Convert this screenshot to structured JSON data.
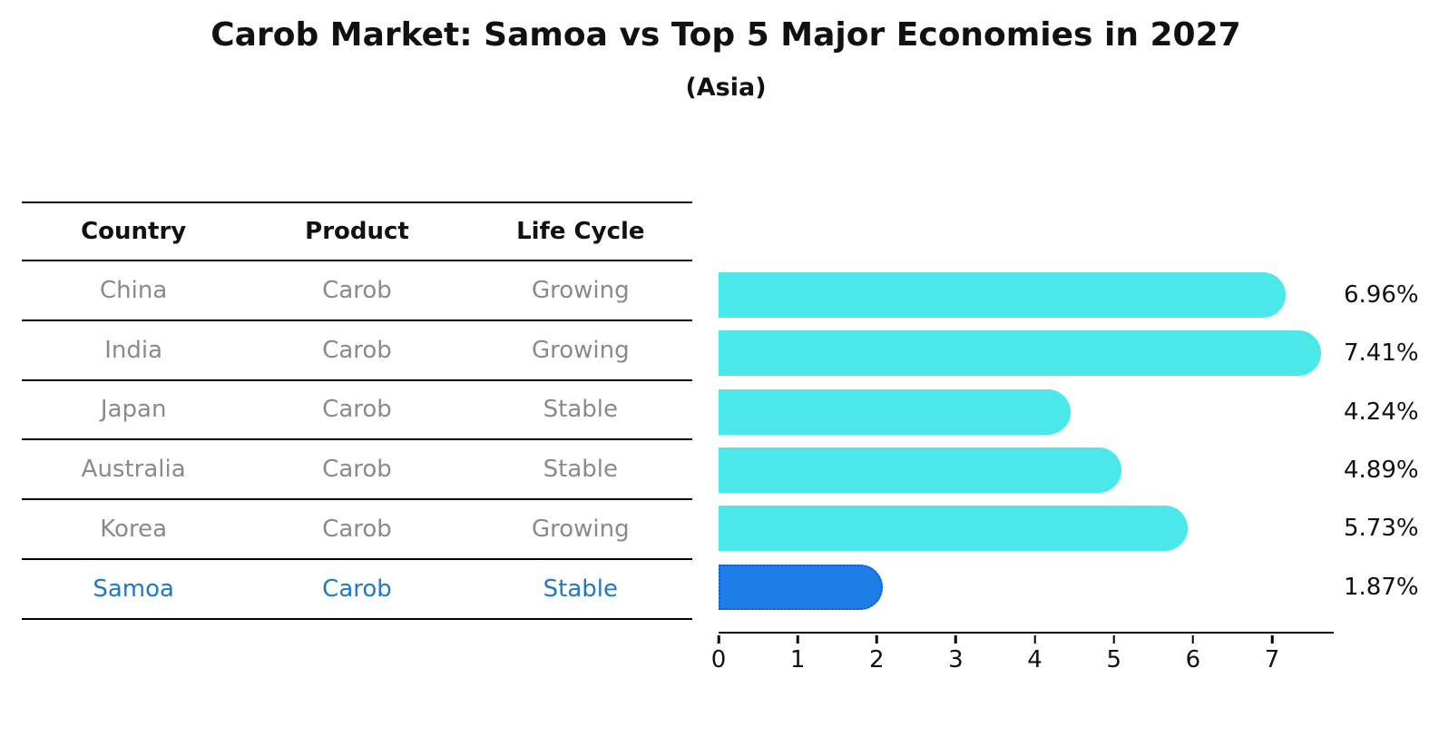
{
  "chart": {
    "title": "Carob Market: Samoa vs Top 5 Major Economies in 2027",
    "subtitle": "(Asia)"
  },
  "table": {
    "headers": [
      "Country",
      "Product",
      "Life Cycle"
    ],
    "rows": [
      {
        "country": "China",
        "product": "Carob",
        "life_cycle": "Growing",
        "highlight": false
      },
      {
        "country": "India",
        "product": "Carob",
        "life_cycle": "Growing",
        "highlight": false
      },
      {
        "country": "Japan",
        "product": "Carob",
        "life_cycle": "Stable",
        "highlight": false
      },
      {
        "country": "Australia",
        "product": "Carob",
        "life_cycle": "Stable",
        "highlight": false
      },
      {
        "country": "Korea",
        "product": "Carob",
        "life_cycle": "Growing",
        "highlight": false
      },
      {
        "country": "Samoa",
        "product": "Carob",
        "life_cycle": "Stable",
        "highlight": true
      }
    ]
  },
  "chart_data": {
    "type": "bar",
    "orientation": "horizontal",
    "title": "Carob Market: Samoa vs Top 5 Major Economies in 2027",
    "subtitle": "(Asia)",
    "categories": [
      "China",
      "India",
      "Japan",
      "Australia",
      "Korea",
      "Samoa"
    ],
    "values": [
      6.96,
      7.41,
      4.24,
      4.89,
      5.73,
      1.87
    ],
    "value_labels": [
      "6.96%",
      "7.41%",
      "4.24%",
      "4.89%",
      "5.73%",
      "1.87%"
    ],
    "highlight_index": 5,
    "xlim": [
      0,
      7.78
    ],
    "xticks": [
      0,
      1,
      2,
      3,
      4,
      5,
      6,
      7
    ],
    "grid": false,
    "legend": "none",
    "bar_color": "#4ae8e8",
    "highlight_color": "#1d7ee8",
    "highlight_border_color": "#0b5bd3",
    "highlight_text_color": "#1f78c8",
    "row_text_color": "#8a8a8a",
    "label_color": "#111111"
  }
}
